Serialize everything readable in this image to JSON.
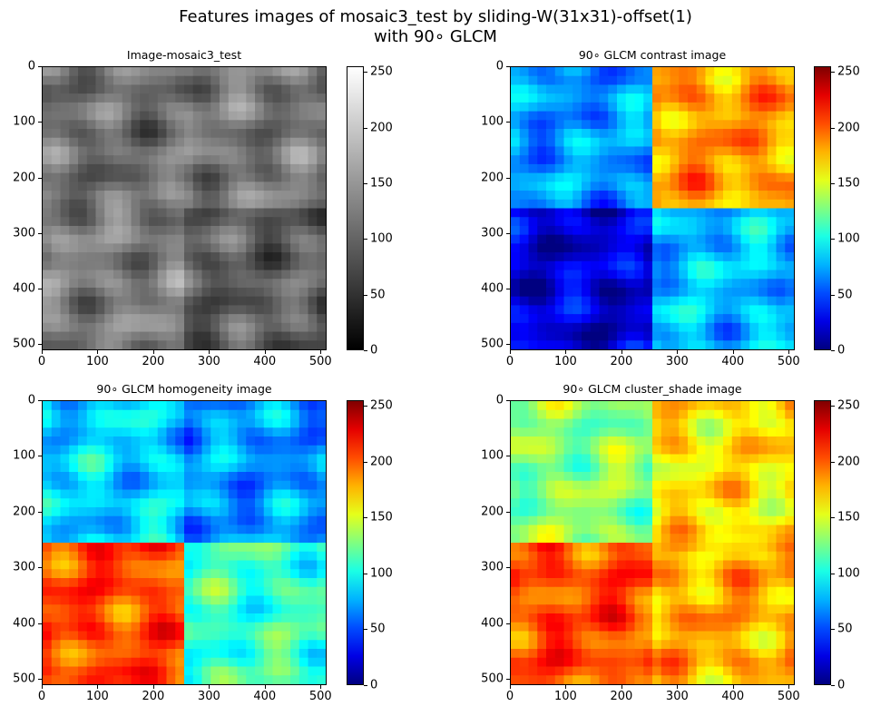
{
  "figure": {
    "title_line1": "Features images of mosaic3_test by sliding-W(31x31)-offset(1)",
    "title_line2": "with 90∘ GLCM"
  },
  "chart_data": [
    {
      "type": "heatmap",
      "title": "Image-mosaic3_test",
      "colormap": "gray",
      "x_ticks": [
        "0",
        "100",
        "200",
        "300",
        "400",
        "500"
      ],
      "y_ticks": [
        "0",
        "100",
        "200",
        "300",
        "400",
        "500"
      ],
      "xlim": [
        0,
        511
      ],
      "ylim": [
        511,
        0
      ],
      "colorbar_ticks": [
        "0",
        "50",
        "100",
        "150",
        "200",
        "250"
      ],
      "clim": [
        0,
        255
      ],
      "quadrant_means": {
        "top_left": 110,
        "top_right": 120,
        "bottom_left": 125,
        "bottom_right": 95
      }
    },
    {
      "type": "heatmap",
      "title": "90∘ GLCM contrast image",
      "colormap": "jet",
      "x_ticks": [
        "0",
        "100",
        "200",
        "300",
        "400",
        "500"
      ],
      "y_ticks": [
        "0",
        "100",
        "200",
        "300",
        "400",
        "500"
      ],
      "xlim": [
        0,
        511
      ],
      "ylim": [
        511,
        0
      ],
      "colorbar_ticks": [
        "0",
        "50",
        "100",
        "150",
        "200",
        "250"
      ],
      "clim": [
        0,
        255
      ],
      "quadrant_means": {
        "top_left": 70,
        "top_right": 185,
        "bottom_left": 22,
        "bottom_right": 80
      }
    },
    {
      "type": "heatmap",
      "title": "90∘ GLCM homogeneity image",
      "colormap": "jet",
      "x_ticks": [
        "0",
        "100",
        "200",
        "300",
        "400",
        "500"
      ],
      "y_ticks": [
        "0",
        "100",
        "200",
        "300",
        "400",
        "500"
      ],
      "xlim": [
        0,
        511
      ],
      "ylim": [
        511,
        0
      ],
      "colorbar_ticks": [
        "0",
        "50",
        "100",
        "150",
        "200",
        "250"
      ],
      "clim": [
        0,
        255
      ],
      "quadrant_means": {
        "top_left": 85,
        "top_right": 70,
        "bottom_left": 205,
        "bottom_right": 110
      }
    },
    {
      "type": "heatmap",
      "title": "90∘ GLCM cluster_shade image",
      "colormap": "jet",
      "x_ticks": [
        "0",
        "100",
        "200",
        "300",
        "400",
        "500"
      ],
      "y_ticks": [
        "0",
        "100",
        "200",
        "300",
        "400",
        "500"
      ],
      "xlim": [
        0,
        511
      ],
      "ylim": [
        511,
        0
      ],
      "colorbar_ticks": [
        "0",
        "50",
        "100",
        "150",
        "200",
        "250"
      ],
      "clim": [
        0,
        255
      ],
      "quadrant_means": {
        "top_left": 130,
        "top_right": 165,
        "bottom_left": 205,
        "bottom_right": 180
      }
    }
  ]
}
